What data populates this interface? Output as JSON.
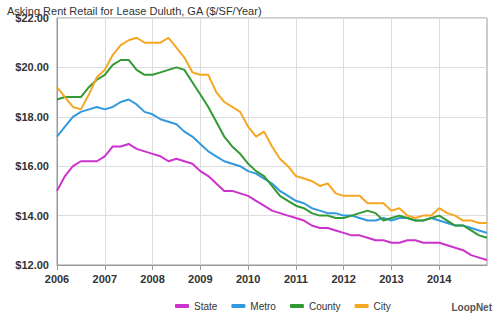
{
  "chart_data": {
    "type": "line",
    "title": "Asking Rent Retail for Lease Duluth, GA ($/SF/Year)",
    "annotations": [
      "LoopNet"
    ],
    "categories": [
      "2006",
      null,
      null,
      null,
      null,
      null,
      "2007",
      null,
      null,
      null,
      null,
      null,
      "2008",
      null,
      null,
      null,
      null,
      null,
      "2009",
      null,
      null,
      null,
      null,
      null,
      "2010",
      null,
      null,
      null,
      null,
      null,
      "2011",
      null,
      null,
      null,
      null,
      null,
      "2012",
      null,
      null,
      null,
      null,
      null,
      "2013",
      null,
      null,
      null,
      null,
      null,
      "2014",
      null,
      null,
      null,
      null,
      null,
      null
    ],
    "series": [
      {
        "name": "State",
        "color": "#cc33cc",
        "values": [
          15.0,
          15.6,
          16.0,
          16.2,
          16.2,
          16.2,
          16.4,
          16.8,
          16.8,
          16.9,
          16.7,
          16.6,
          16.5,
          16.4,
          16.2,
          16.3,
          16.2,
          16.1,
          15.8,
          15.6,
          15.3,
          15.0,
          15.0,
          14.9,
          14.8,
          14.6,
          14.4,
          14.2,
          14.1,
          14.0,
          13.9,
          13.8,
          13.6,
          13.5,
          13.5,
          13.4,
          13.3,
          13.2,
          13.2,
          13.1,
          13.0,
          13.0,
          12.9,
          12.9,
          13.0,
          13.0,
          12.9,
          12.9,
          12.9,
          12.8,
          12.7,
          12.6,
          12.4,
          12.3,
          12.2
        ]
      },
      {
        "name": "Metro",
        "color": "#3399dd",
        "values": [
          17.2,
          17.6,
          18.0,
          18.2,
          18.3,
          18.4,
          18.3,
          18.4,
          18.6,
          18.7,
          18.5,
          18.2,
          18.1,
          17.9,
          17.8,
          17.7,
          17.4,
          17.2,
          16.9,
          16.6,
          16.4,
          16.2,
          16.1,
          16.0,
          15.8,
          15.7,
          15.5,
          15.3,
          15.0,
          14.8,
          14.6,
          14.5,
          14.3,
          14.2,
          14.1,
          14.1,
          14.0,
          14.0,
          13.9,
          13.8,
          13.8,
          13.9,
          13.8,
          13.9,
          13.9,
          13.8,
          13.8,
          13.9,
          13.8,
          13.7,
          13.6,
          13.6,
          13.5,
          13.4,
          13.3
        ]
      },
      {
        "name": "County",
        "color": "#339933",
        "values": [
          18.7,
          18.8,
          18.8,
          18.8,
          19.2,
          19.5,
          19.7,
          20.1,
          20.3,
          20.3,
          19.9,
          19.7,
          19.7,
          19.8,
          19.9,
          20.0,
          19.9,
          19.4,
          18.9,
          18.4,
          17.8,
          17.2,
          16.8,
          16.5,
          16.1,
          15.8,
          15.6,
          15.2,
          14.8,
          14.6,
          14.4,
          14.3,
          14.1,
          14.0,
          14.0,
          13.9,
          13.9,
          14.0,
          14.1,
          14.2,
          14.1,
          13.8,
          13.9,
          14.0,
          13.9,
          13.8,
          13.8,
          13.9,
          14.0,
          13.8,
          13.6,
          13.6,
          13.4,
          13.2,
          13.1
        ]
      },
      {
        "name": "City",
        "color": "#f5a623",
        "values": [
          19.2,
          18.8,
          18.4,
          18.3,
          18.9,
          19.6,
          19.9,
          20.5,
          20.9,
          21.1,
          21.2,
          21.0,
          21.0,
          21.0,
          21.2,
          20.8,
          20.4,
          19.8,
          19.7,
          19.7,
          19.0,
          18.6,
          18.4,
          18.2,
          17.6,
          17.2,
          17.4,
          16.8,
          16.3,
          16.0,
          15.6,
          15.5,
          15.4,
          15.2,
          15.3,
          14.9,
          14.8,
          14.8,
          14.8,
          14.5,
          14.5,
          14.5,
          14.2,
          14.3,
          14.0,
          13.9,
          14.0,
          14.0,
          14.3,
          14.1,
          14.0,
          13.8,
          13.8,
          13.7,
          13.7
        ]
      }
    ],
    "ylim": [
      12,
      22
    ],
    "yticks": [
      {
        "value": 12,
        "label": "$12.00"
      },
      {
        "value": 14,
        "label": "$14.00"
      },
      {
        "value": 16,
        "label": "$16.00"
      },
      {
        "value": 18,
        "label": "$18.00"
      },
      {
        "value": 20,
        "label": "$20.00"
      },
      {
        "value": 22,
        "label": "$22.00"
      }
    ],
    "grid": true,
    "legend": "bottom"
  }
}
